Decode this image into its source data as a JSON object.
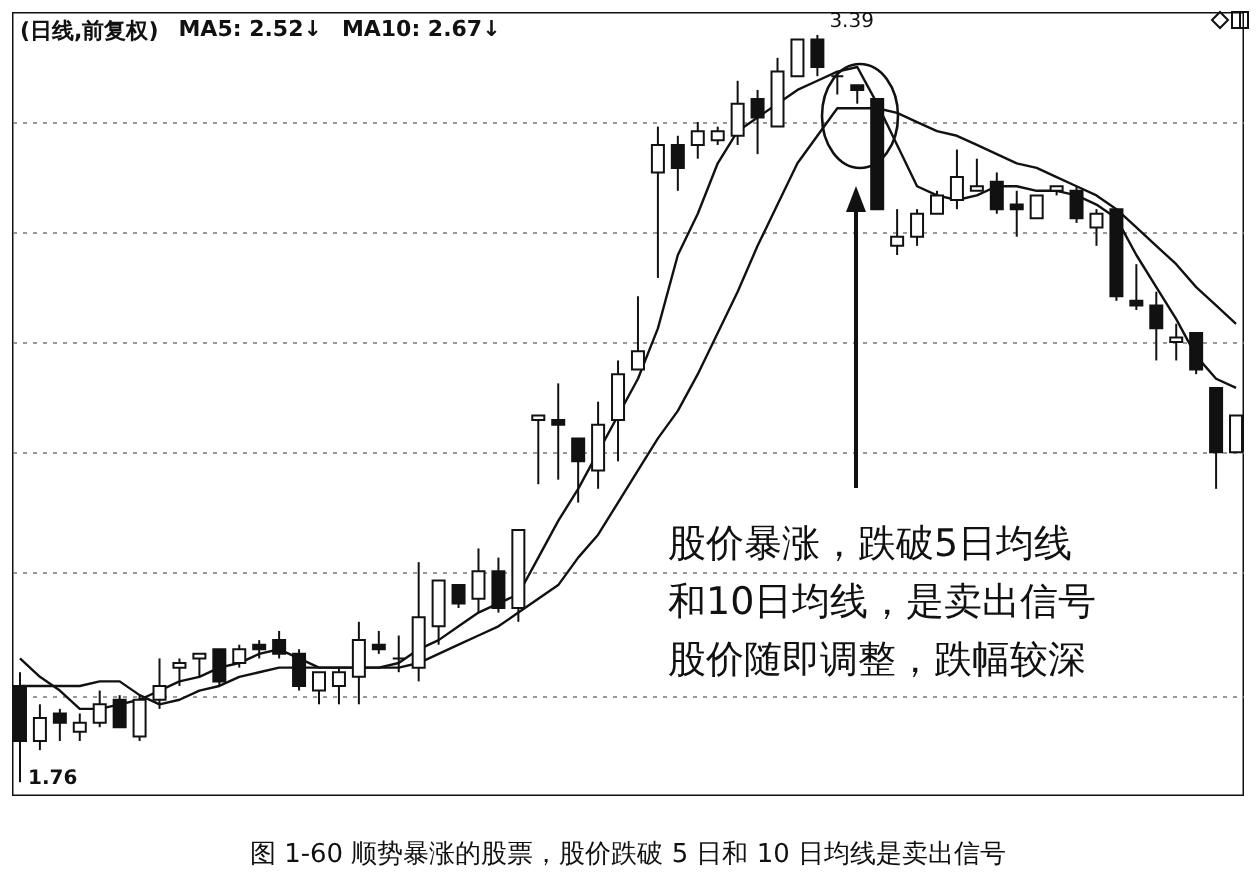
{
  "chart_data": {
    "type": "candlestick",
    "title": "(日线,前复权)",
    "color": "#111111",
    "grid": "y",
    "categories": [
      null,
      null,
      null,
      null,
      null,
      null,
      null,
      null,
      null,
      null,
      null,
      null,
      null,
      null,
      null,
      null,
      null,
      null,
      null,
      null,
      null,
      null,
      null,
      null,
      null,
      null,
      null,
      null,
      null,
      null,
      null,
      null,
      null,
      null,
      null,
      null,
      null,
      null,
      null,
      null,
      null,
      null,
      null,
      null,
      null,
      null,
      null,
      null,
      null,
      null,
      null,
      null,
      null,
      null,
      null,
      null,
      null,
      null,
      null,
      null,
      null,
      null
    ],
    "ohlc": [
      [
        1.97,
        2.0,
        1.76,
        1.85
      ],
      [
        1.85,
        1.93,
        1.83,
        1.9
      ],
      [
        1.91,
        1.92,
        1.85,
        1.89
      ],
      [
        1.87,
        1.91,
        1.85,
        1.89
      ],
      [
        1.89,
        1.96,
        1.88,
        1.93
      ],
      [
        1.94,
        1.95,
        1.88,
        1.88
      ],
      [
        1.86,
        1.95,
        1.85,
        1.94
      ],
      [
        1.94,
        2.03,
        1.92,
        1.97
      ],
      [
        2.01,
        2.03,
        1.97,
        2.02
      ],
      [
        2.03,
        2.04,
        1.99,
        2.04
      ],
      [
        2.05,
        2.05,
        1.97,
        1.98
      ],
      [
        2.02,
        2.06,
        2.01,
        2.05
      ],
      [
        2.06,
        2.07,
        2.03,
        2.05
      ],
      [
        2.07,
        2.09,
        2.03,
        2.04
      ],
      [
        2.04,
        2.05,
        1.96,
        1.97
      ],
      [
        1.96,
        2.0,
        1.93,
        2.0
      ],
      [
        1.97,
        2.01,
        1.93,
        2.0
      ],
      [
        1.99,
        2.11,
        1.93,
        2.07
      ],
      [
        2.06,
        2.09,
        2.04,
        2.05
      ],
      [
        2.03,
        2.08,
        2.0,
        2.03
      ],
      [
        2.01,
        2.24,
        1.98,
        2.12
      ],
      [
        2.1,
        2.2,
        2.06,
        2.2
      ],
      [
        2.19,
        2.19,
        2.14,
        2.15
      ],
      [
        2.16,
        2.27,
        2.13,
        2.22
      ],
      [
        2.22,
        2.25,
        2.13,
        2.14
      ],
      [
        2.14,
        2.31,
        2.11,
        2.31
      ],
      [
        2.55,
        2.56,
        2.41,
        2.56
      ],
      [
        2.55,
        2.63,
        2.42,
        2.54
      ],
      [
        2.51,
        2.51,
        2.37,
        2.46
      ],
      [
        2.44,
        2.59,
        2.4,
        2.54
      ],
      [
        2.55,
        2.68,
        2.46,
        2.65
      ],
      [
        2.66,
        2.82,
        2.66,
        2.7
      ],
      [
        3.09,
        3.19,
        2.86,
        3.15
      ],
      [
        3.15,
        3.17,
        3.05,
        3.1
      ],
      [
        3.15,
        3.2,
        3.12,
        3.18
      ],
      [
        3.16,
        3.19,
        3.15,
        3.18
      ],
      [
        3.17,
        3.29,
        3.15,
        3.24
      ],
      [
        3.25,
        3.27,
        3.13,
        3.21
      ],
      [
        3.19,
        3.34,
        3.19,
        3.31
      ],
      [
        3.3,
        3.38,
        3.3,
        3.38
      ],
      [
        3.38,
        3.39,
        3.3,
        3.32
      ],
      [
        3.3,
        3.31,
        3.26,
        3.3
      ],
      [
        3.28,
        3.28,
        3.24,
        3.27
      ],
      [
        3.25,
        3.25,
        3.01,
        3.01
      ],
      [
        2.93,
        3.01,
        2.91,
        2.95
      ],
      [
        2.95,
        3.01,
        2.93,
        3.0
      ],
      [
        3.0,
        3.05,
        3.0,
        3.04
      ],
      [
        3.03,
        3.14,
        3.01,
        3.08
      ],
      [
        3.05,
        3.12,
        3.05,
        3.06
      ],
      [
        3.07,
        3.09,
        3.0,
        3.01
      ],
      [
        3.02,
        3.05,
        2.95,
        3.01
      ],
      [
        2.99,
        3.04,
        2.99,
        3.04
      ],
      [
        3.05,
        3.06,
        3.04,
        3.06
      ],
      [
        3.05,
        3.06,
        2.98,
        2.99
      ],
      [
        2.97,
        3.01,
        2.93,
        3.0
      ],
      [
        3.01,
        3.01,
        2.81,
        2.82
      ],
      [
        2.81,
        2.89,
        2.79,
        2.8
      ],
      [
        2.8,
        2.83,
        2.68,
        2.75
      ],
      [
        2.72,
        2.76,
        2.68,
        2.73
      ],
      [
        2.74,
        2.74,
        2.65,
        2.66
      ],
      [
        2.62,
        2.62,
        2.4,
        2.48
      ],
      [
        2.48,
        2.56,
        2.48,
        2.56
      ]
    ],
    "series": [
      {
        "type": "line",
        "color": "#111111",
        "values": [
          2.03,
          1.99,
          1.96,
          1.92,
          1.92,
          1.93,
          1.94,
          1.96,
          1.98,
          1.99,
          2.01,
          2.02,
          2.04,
          2.05,
          2.03,
          2.01,
          2.01,
          2.01,
          2.01,
          2.02,
          2.05,
          2.07,
          2.1,
          2.13,
          2.15,
          2.17,
          2.25,
          2.33,
          2.4,
          2.48,
          2.56,
          2.64,
          2.75,
          2.91,
          3.0,
          3.11,
          3.18,
          3.21,
          3.24,
          3.27,
          3.29,
          3.31,
          3.32,
          3.24,
          3.15,
          3.06,
          3.04,
          3.03,
          3.04,
          3.06,
          3.06,
          3.05,
          3.05,
          3.04,
          3.02,
          2.99,
          2.91,
          2.84,
          2.77,
          2.69,
          2.64,
          2.62
        ]
      },
      {
        "type": "line",
        "color": "#111111",
        "values": [
          1.97,
          1.97,
          1.97,
          1.97,
          1.98,
          1.98,
          1.95,
          1.93,
          1.94,
          1.96,
          1.97,
          1.99,
          2.0,
          2.01,
          2.01,
          2.01,
          2.01,
          2.01,
          2.01,
          2.01,
          2.02,
          2.04,
          2.06,
          2.08,
          2.1,
          2.13,
          2.16,
          2.19,
          2.25,
          2.3,
          2.37,
          2.44,
          2.51,
          2.57,
          2.65,
          2.74,
          2.83,
          2.93,
          3.02,
          3.11,
          3.17,
          3.23,
          3.23,
          3.23,
          3.22,
          3.2,
          3.18,
          3.17,
          3.15,
          3.13,
          3.11,
          3.1,
          3.08,
          3.06,
          3.04,
          3.01,
          2.97,
          2.93,
          2.89,
          2.84,
          2.8,
          2.76
        ]
      }
    ],
    "ylim": [
      1.73,
      3.44
    ],
    "yticks": [
      {
        "value": 3.2,
        "label": null
      },
      {
        "value": 2.96,
        "label": null
      },
      {
        "value": 2.72,
        "label": null
      },
      {
        "value": 2.48,
        "label": null
      },
      {
        "value": 2.22,
        "label": null
      },
      {
        "value": 1.95,
        "label": null
      }
    ],
    "annotations": [
      "MA5: 2.52↓",
      "MA10: 2.67↓",
      "3.39",
      "1.76",
      "股价暴涨，跌破5日均线",
      "和10日均线，是卖出信号",
      "股价随即调整，跌幅较深",
      "图 1-60  顺势暴涨的股票，股价跌破 5 日和 10 日均线是卖出信号"
    ]
  }
}
